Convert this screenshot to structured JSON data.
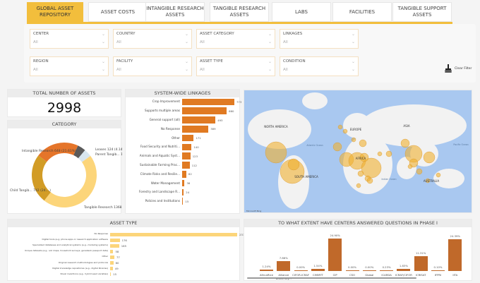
{
  "tabs": [
    {
      "label": "GLOBAL ASSET REPOSITORY",
      "active": true
    },
    {
      "label": "ASSET COSTS"
    },
    {
      "label": "INTANGIBLE RESEARCH ASSETS"
    },
    {
      "label": "TANGIBLE RESEARCH ASSETS"
    },
    {
      "label": "LABS"
    },
    {
      "label": "FACILITIES"
    },
    {
      "label": "TANGIBLE SUPPORT ASSETS"
    }
  ],
  "filters": [
    {
      "label": "CENTER",
      "value": "All"
    },
    {
      "label": "COUNTRY",
      "value": "All"
    },
    {
      "label": "ASSET CATEGORY",
      "value": "All"
    },
    {
      "label": "LINKAGES",
      "value": "All"
    },
    {
      "label": "REGION",
      "value": "All"
    },
    {
      "label": "FACILITY",
      "value": "All"
    },
    {
      "label": "ASSET TYPE",
      "value": "All"
    },
    {
      "label": "CONDITION",
      "value": "All"
    }
  ],
  "clear_filter": "Clear Filter",
  "total": {
    "title": "TOTAL NUMBER OF ASSETS",
    "value": "2998"
  },
  "colors": {
    "accent": "#f2be3c",
    "bar_orange": "#e07a22",
    "bar_yellow": "#fcd57a",
    "bar_brown": "#c0692a",
    "map_water": "#a9c8f0",
    "map_land": "#f2f2f2",
    "bubble": "#f0b030"
  },
  "chart_data": [
    {
      "type": "pie",
      "title": "CATEGORY",
      "donut": true,
      "slices": [
        {
          "name": "Leases",
          "value": 124,
          "label": "Leases 124 (4.14%)",
          "color": "#5a5a5a"
        },
        {
          "name": "Parent Tangible",
          "value": 116,
          "label": "Parent Tangib... 116 (3.87%)",
          "color": "#d8e6ef"
        },
        {
          "name": "Tangible Research",
          "value": 1368,
          "label": "Tangible Research 1368 (45.63%)",
          "color": "#fcd57a"
        },
        {
          "name": "Child Tangible",
          "value": 742,
          "label": "Child Tangib... 742 (24....)",
          "color": "#d29c26"
        },
        {
          "name": "Intangible Research",
          "value": 648,
          "label": "Intangible Research 648 (21.61%)",
          "color": "#e5752a"
        }
      ]
    },
    {
      "type": "bar",
      "orientation": "horizontal",
      "title": "SYSTEM-WIDE LINKAGES",
      "categories": [
        "Crop Improvement",
        "Supports multiple areas",
        "General support (all)",
        "No Response",
        "Other",
        "Food Security and Nutriti...",
        "Animals and Aquatic Syst...",
        "Sustainable Farming Prac...",
        "Climate Risks and Resilie...",
        "Water Management",
        "Forestry and Landscape R...",
        "Policies and Institutions"
      ],
      "values": [
        773,
        660,
        493,
        389,
        171,
        140,
        123,
        112,
        62,
        36,
        24,
        15
      ]
    },
    {
      "type": "bar",
      "orientation": "horizontal",
      "title": "ASSET TYPE",
      "categories": [
        "No Response",
        "Digital tools (e.g. phone apps or research application software",
        "Specialized databases and analytical systems (e.g., modeling systems)",
        "Unique datasets (e.g., soil maps, household surveys, genebank passport data)",
        "Other",
        "Original research methodologies and protocols",
        "Digital knowledge repositories (e.g., digital libraries)",
        "Novel inventions (e.g., hybrid seed varieties)"
      ],
      "values": [
        2331,
        176,
        165,
        58,
        77,
        60,
        49,
        15
      ]
    },
    {
      "type": "bar",
      "title": "TO WHAT EXTENT HAVE CENTERS ANSWERED QUESTIONS IN PHASE I",
      "categories": [
        "AfricaRice",
        "Alliance Bioversity...",
        "CIFOR-ICRAF",
        "CIMMYT",
        "CIP",
        "CSO",
        "Global",
        "ICARDA",
        "ICRAF/CIFOR",
        "ICRISAT",
        "IFPRI",
        "IITA"
      ],
      "values": [
        1.24,
        7.86,
        0.0,
        1.54,
        24.9,
        0.0,
        0.0,
        0.23,
        1.83,
        11.31,
        0.1,
        24.39
      ],
      "labels": [
        "1.24%",
        "7.86%",
        "0.00%",
        "1.54%",
        "24.90%",
        "0.00%",
        "0.00%",
        "0.23%",
        "1.83%",
        "11.31%",
        "0.10%",
        "24.39%"
      ]
    }
  ],
  "map": {
    "labels": [
      "NORTH AMERICA",
      "EUROPE",
      "ASIA",
      "SOUTH AMERICA",
      "AFRICA",
      "AUSTRALIA",
      "Atlantic Ocean",
      "Indian Ocean",
      "Pacific Ocean"
    ],
    "logo": "Microsoft Bing"
  }
}
